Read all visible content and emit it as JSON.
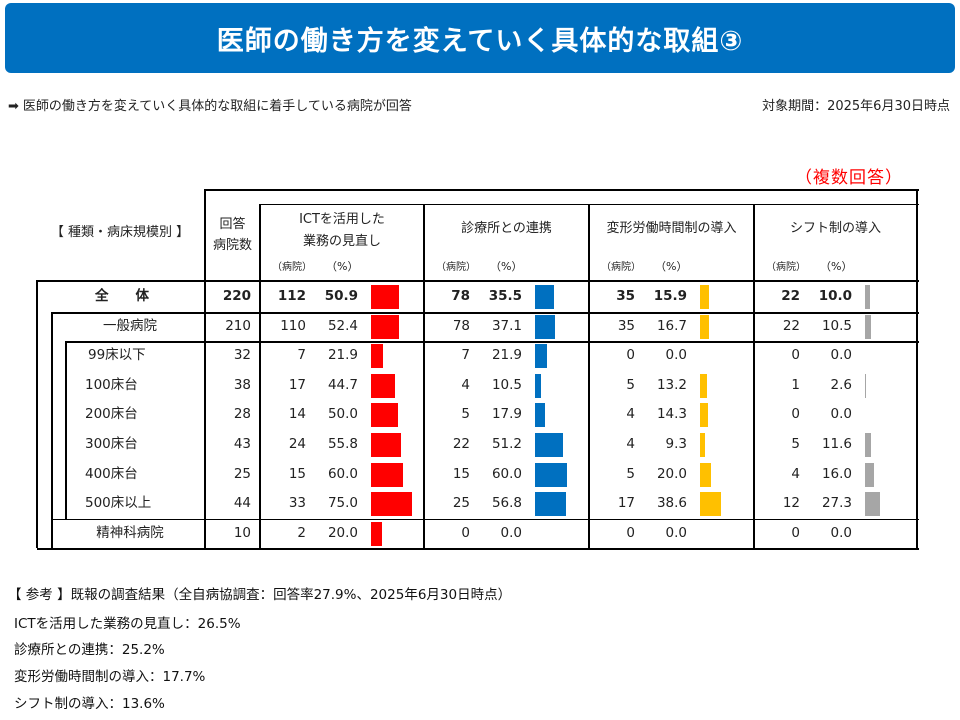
{
  "header": {
    "title": "医師の働き方を変えていく具体的な取組③",
    "subtitle_arrow": "➡",
    "subtitle": "医師の働き方を変えていく具体的な取組に着手している病院が回答",
    "period": "対象期間：2025年6月30日時点",
    "multiple_answers": "（複数回答）"
  },
  "table": {
    "row_header_label": "【 種類・病床規模別 】",
    "count_header": [
      "回答",
      "病院数"
    ],
    "unit_hospital": "（病院）",
    "unit_percent": "（%）",
    "columns": [
      {
        "title_lines": [
          "ICTを活用した",
          "業務の見直し"
        ],
        "color": "#ff0000"
      },
      {
        "title_lines": [
          "診療所との連携"
        ],
        "color": "#0070c0"
      },
      {
        "title_lines": [
          "変形労働時間制の導入"
        ],
        "color": "#ffc000"
      },
      {
        "title_lines": [
          "シフト制の導入"
        ],
        "color": "#a6a6a6"
      }
    ],
    "rows": [
      {
        "label": "全　　体",
        "total": "220",
        "values": [
          [
            "112",
            "50.9"
          ],
          [
            "78",
            "35.5"
          ],
          [
            "35",
            "15.9"
          ],
          [
            "22",
            "10.0"
          ]
        ],
        "pct": [
          50.9,
          35.5,
          15.9,
          10.0
        ]
      },
      {
        "label": "一般病院",
        "total": "210",
        "values": [
          [
            "110",
            "52.4"
          ],
          [
            "78",
            "37.1"
          ],
          [
            "35",
            "16.7"
          ],
          [
            "22",
            "10.5"
          ]
        ],
        "pct": [
          52.4,
          37.1,
          16.7,
          10.5
        ]
      },
      {
        "label": "99床以下",
        "total": "32",
        "values": [
          [
            "7",
            "21.9"
          ],
          [
            "7",
            "21.9"
          ],
          [
            "0",
            "0.0"
          ],
          [
            "0",
            "0.0"
          ]
        ],
        "pct": [
          21.9,
          21.9,
          0,
          0
        ]
      },
      {
        "label": "100床台",
        "total": "38",
        "values": [
          [
            "17",
            "44.7"
          ],
          [
            "4",
            "10.5"
          ],
          [
            "5",
            "13.2"
          ],
          [
            "1",
            "2.6"
          ]
        ],
        "pct": [
          44.7,
          10.5,
          13.2,
          2.6
        ]
      },
      {
        "label": "200床台",
        "total": "28",
        "values": [
          [
            "14",
            "50.0"
          ],
          [
            "5",
            "17.9"
          ],
          [
            "4",
            "14.3"
          ],
          [
            "0",
            "0.0"
          ]
        ],
        "pct": [
          50.0,
          17.9,
          14.3,
          0
        ]
      },
      {
        "label": "300床台",
        "total": "43",
        "values": [
          [
            "24",
            "55.8"
          ],
          [
            "22",
            "51.2"
          ],
          [
            "4",
            "9.3"
          ],
          [
            "5",
            "11.6"
          ]
        ],
        "pct": [
          55.8,
          51.2,
          9.3,
          11.6
        ]
      },
      {
        "label": "400床台",
        "total": "25",
        "values": [
          [
            "15",
            "60.0"
          ],
          [
            "15",
            "60.0"
          ],
          [
            "5",
            "20.0"
          ],
          [
            "4",
            "16.0"
          ]
        ],
        "pct": [
          60.0,
          60.0,
          20.0,
          16.0
        ]
      },
      {
        "label": "500床以上",
        "total": "44",
        "values": [
          [
            "33",
            "75.0"
          ],
          [
            "25",
            "56.8"
          ],
          [
            "17",
            "38.6"
          ],
          [
            "12",
            "27.3"
          ]
        ],
        "pct": [
          75.0,
          56.8,
          38.6,
          27.3
        ]
      },
      {
        "label": "精神科病院",
        "total": "10",
        "values": [
          [
            "2",
            "20.0"
          ],
          [
            "0",
            "0.0"
          ],
          [
            "0",
            "0.0"
          ],
          [
            "0",
            "0.0"
          ]
        ],
        "pct": [
          20.0,
          0,
          0,
          0
        ]
      }
    ]
  },
  "reference": {
    "heading": "【 参考 】既報の調査結果（全自病協調査：回答率27.9%、2025年6月30日時点）",
    "items": [
      "ICTを活用した業務の見直し：26.5%",
      "診療所との連携：25.2%",
      "変形労働時間制の導入：17.7%",
      "シフト制の導入：13.6%"
    ]
  }
}
